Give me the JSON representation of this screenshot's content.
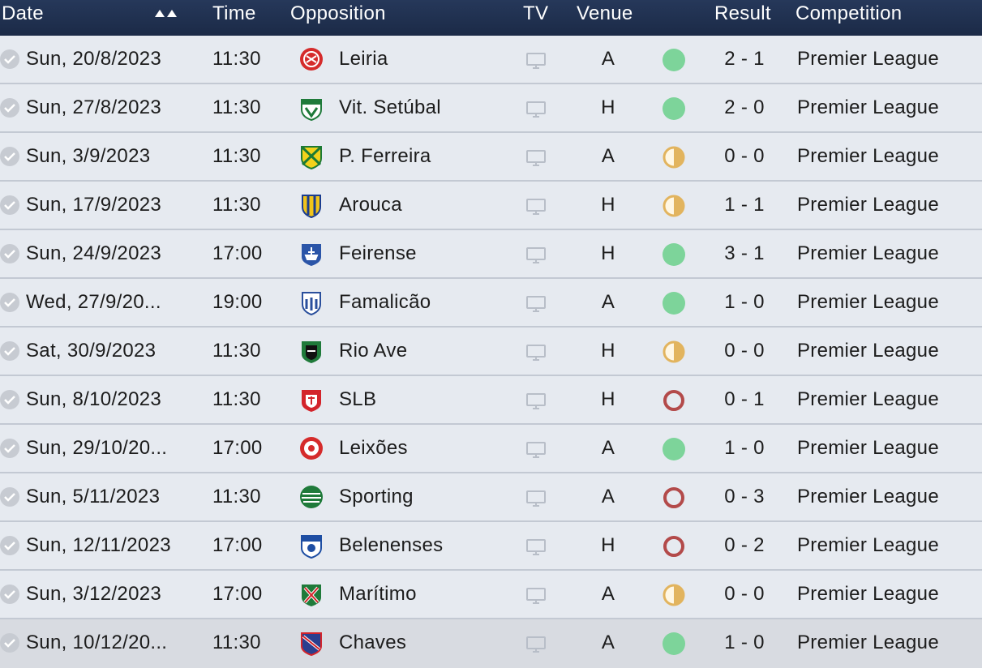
{
  "columns": {
    "date": "Date",
    "time": "Time",
    "opposition": "Opposition",
    "tv": "TV",
    "venue": "Venue",
    "result": "Result",
    "competition": "Competition"
  },
  "colors": {
    "win": "#7dd49a",
    "draw": "#e2b45e",
    "loss": "#b34a4a"
  },
  "fixtures": [
    {
      "date": "Sun, 20/8/2023",
      "time": "11:30",
      "opposition": "Leiria",
      "crest": "leiria-crest-icon",
      "venue": "A",
      "outcome": "win",
      "result": "2 - 1",
      "competition": "Premier League"
    },
    {
      "date": "Sun, 27/8/2023",
      "time": "11:30",
      "opposition": "Vit. Setúbal",
      "crest": "vit-setubal-crest-icon",
      "venue": "H",
      "outcome": "win",
      "result": "2 - 0",
      "competition": "Premier League"
    },
    {
      "date": "Sun, 3/9/2023",
      "time": "11:30",
      "opposition": "P. Ferreira",
      "crest": "p-ferreira-crest-icon",
      "venue": "A",
      "outcome": "draw",
      "result": "0 - 0",
      "competition": "Premier League"
    },
    {
      "date": "Sun, 17/9/2023",
      "time": "11:30",
      "opposition": "Arouca",
      "crest": "arouca-crest-icon",
      "venue": "H",
      "outcome": "draw",
      "result": "1 - 1",
      "competition": "Premier League"
    },
    {
      "date": "Sun, 24/9/2023",
      "time": "17:00",
      "opposition": "Feirense",
      "crest": "feirense-crest-icon",
      "venue": "H",
      "outcome": "win",
      "result": "3 - 1",
      "competition": "Premier League"
    },
    {
      "date": "Wed, 27/9/20...",
      "time": "19:00",
      "opposition": "Famalicão",
      "crest": "famalicao-crest-icon",
      "venue": "A",
      "outcome": "win",
      "result": "1 - 0",
      "competition": "Premier League"
    },
    {
      "date": "Sat, 30/9/2023",
      "time": "11:30",
      "opposition": "Rio Ave",
      "crest": "rio-ave-crest-icon",
      "venue": "H",
      "outcome": "draw",
      "result": "0 - 0",
      "competition": "Premier League"
    },
    {
      "date": "Sun, 8/10/2023",
      "time": "11:30",
      "opposition": "SLB",
      "crest": "slb-crest-icon",
      "venue": "H",
      "outcome": "loss",
      "result": "0 - 1",
      "competition": "Premier League"
    },
    {
      "date": "Sun, 29/10/20...",
      "time": "17:00",
      "opposition": "Leixões",
      "crest": "leixoes-crest-icon",
      "venue": "A",
      "outcome": "win",
      "result": "1 - 0",
      "competition": "Premier League"
    },
    {
      "date": "Sun, 5/11/2023",
      "time": "11:30",
      "opposition": "Sporting",
      "crest": "sporting-crest-icon",
      "venue": "A",
      "outcome": "loss",
      "result": "0 - 3",
      "competition": "Premier League"
    },
    {
      "date": "Sun, 12/11/2023",
      "time": "17:00",
      "opposition": "Belenenses",
      "crest": "belenenses-crest-icon",
      "venue": "H",
      "outcome": "loss",
      "result": "0 - 2",
      "competition": "Premier League"
    },
    {
      "date": "Sun, 3/12/2023",
      "time": "17:00",
      "opposition": "Marítimo",
      "crest": "maritimo-crest-icon",
      "venue": "A",
      "outcome": "draw",
      "result": "0 - 0",
      "competition": "Premier League"
    },
    {
      "date": "Sun, 10/12/20...",
      "time": "11:30",
      "opposition": "Chaves",
      "crest": "chaves-crest-icon",
      "venue": "A",
      "outcome": "win",
      "result": "1 - 0",
      "competition": "Premier League"
    }
  ]
}
